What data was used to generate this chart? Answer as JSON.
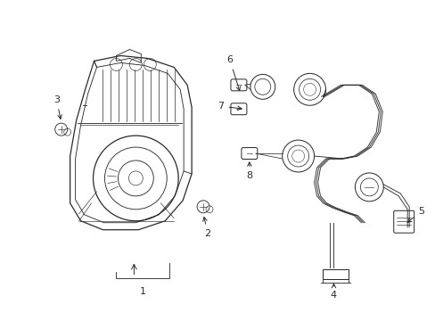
{
  "background_color": "#ffffff",
  "line_color": "#2a2a2a",
  "figsize": [
    4.89,
    3.6
  ],
  "dpi": 100
}
